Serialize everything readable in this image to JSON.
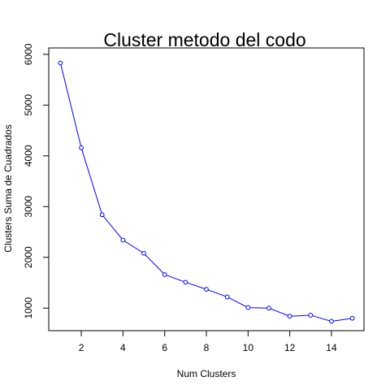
{
  "chart_data": {
    "type": "line",
    "title": "Cluster metodo del codo",
    "xlabel": "Num Clusters",
    "ylabel": "Clusters Suma de Cuadrados",
    "x": [
      1,
      2,
      3,
      4,
      5,
      6,
      7,
      8,
      9,
      10,
      11,
      12,
      13,
      14,
      15
    ],
    "series": [
      {
        "values": [
          5830,
          4160,
          2840,
          2340,
          2080,
          1660,
          1510,
          1370,
          1220,
          1010,
          1000,
          840,
          860,
          740,
          800
        ],
        "color": "#0000ff"
      }
    ],
    "xticks": [
      "2",
      "4",
      "6",
      "8",
      "10",
      "12",
      "14"
    ],
    "yticks": [
      "1000",
      "2000",
      "3000",
      "4000",
      "5000",
      "6000"
    ],
    "xlim": [
      0.44,
      15.56
    ],
    "ylim": [
      555,
      6126
    ],
    "grid": false,
    "marker": "open-circle",
    "legend": "none"
  }
}
